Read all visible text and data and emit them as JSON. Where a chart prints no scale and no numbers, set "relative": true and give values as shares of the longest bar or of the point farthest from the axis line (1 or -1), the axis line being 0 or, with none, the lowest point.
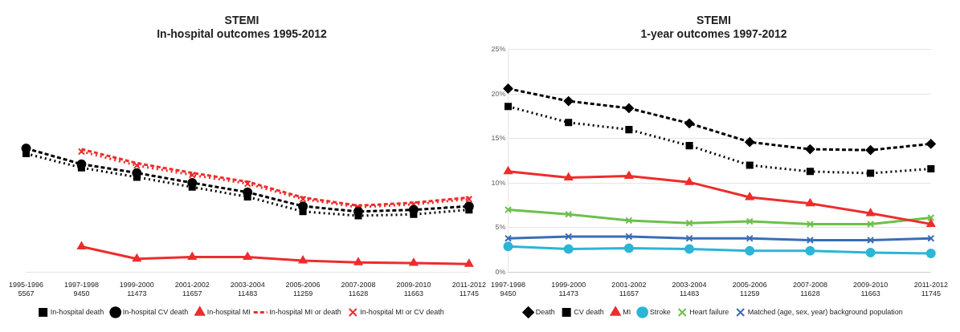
{
  "chart_data": [
    {
      "type": "line",
      "title": "STEMI\nIn-hospital outcomes 1995-2012",
      "relative": true,
      "categories": [
        "1995-1996\n5567",
        "1997-1998\n9450",
        "1999-2000\n11473",
        "2001-2002\n11657",
        "2003-2004\n11483",
        "2005-2006\n11259",
        "2007-2008\n11628",
        "2009-2010\n11663",
        "2011-2012\n11745"
      ],
      "series": [
        {
          "name": "In-hospital death",
          "color": "#000000",
          "marker": "square",
          "line_style": "dotted",
          "values": [
            0.958,
            0.844,
            0.768,
            0.688,
            0.609,
            0.49,
            0.456,
            0.467,
            0.504
          ]
        },
        {
          "name": "In-hospital CV death",
          "color": "#000000",
          "marker": "circle",
          "line_style": "dashed",
          "values": [
            1,
            0.873,
            0.802,
            0.722,
            0.646,
            0.533,
            0.49,
            0.504,
            0.533
          ]
        },
        {
          "name": "In-hospital MI",
          "color": "#ee2c2c",
          "marker": "triangle",
          "line_style": "solid",
          "values": [
            null,
            0.207,
            0.108,
            0.122,
            0.122,
            0.093,
            0.079,
            0.074,
            0.065
          ]
        },
        {
          "name": "In-hospital MI or death",
          "color": "#ee2c2c",
          "marker": "none",
          "line_style": "dashed",
          "values": [
            null,
            0.994,
            0.881,
            0.802,
            0.731,
            0.603,
            0.538,
            0.561,
            0.603
          ]
        },
        {
          "name": "In-hospital MI or CV death",
          "color": "#ee2c2c",
          "marker": "cross",
          "line_style": "dotted",
          "values": [
            null,
            0.975,
            0.862,
            0.785,
            0.715,
            0.59,
            0.525,
            0.548,
            0.59
          ]
        }
      ],
      "legend": "bottom"
    },
    {
      "type": "line",
      "title": "STEMI\n1-year outcomes 1997-2012",
      "categories": [
        "1997-1998\n9450",
        "1999-2000\n11473",
        "2001-2002\n11657",
        "2003-2004\n11483",
        "2005-2006\n11259",
        "2007-2008\n11628",
        "2009-2010\n11663",
        "2011-2012\n11745"
      ],
      "ylim": [
        0,
        25
      ],
      "yticks": [
        {
          "value": 0,
          "label": "0%"
        },
        {
          "value": 5,
          "label": "5%"
        },
        {
          "value": 10,
          "label": "10%"
        },
        {
          "value": 15,
          "label": "15%"
        },
        {
          "value": 20,
          "label": "20%"
        },
        {
          "value": 25,
          "label": "25%"
        }
      ],
      "series": [
        {
          "name": "Death",
          "color": "#000000",
          "marker": "diamond",
          "line_style": "dashed",
          "values": [
            20.6,
            19.2,
            18.4,
            16.7,
            14.6,
            13.8,
            13.7,
            14.4
          ]
        },
        {
          "name": "CV death",
          "color": "#000000",
          "marker": "square",
          "line_style": "dotted",
          "values": [
            18.6,
            16.8,
            16.0,
            14.2,
            12.0,
            11.3,
            11.1,
            11.6
          ]
        },
        {
          "name": "MI",
          "color": "#ee2c2c",
          "marker": "triangle",
          "line_style": "solid",
          "values": [
            11.3,
            10.6,
            10.8,
            10.1,
            8.4,
            7.7,
            6.6,
            5.4
          ]
        },
        {
          "name": "Stroke",
          "color": "#2bb5d6",
          "marker": "circle",
          "line_style": "solid",
          "values": [
            2.9,
            2.6,
            2.7,
            2.6,
            2.4,
            2.4,
            2.2,
            2.1
          ]
        },
        {
          "name": "Heart failure",
          "color": "#6cc04a",
          "marker": "cross",
          "line_style": "solid",
          "values": [
            7.0,
            6.5,
            5.8,
            5.5,
            5.7,
            5.4,
            5.4,
            6.1
          ]
        },
        {
          "name": "Matched (age, sex, year) background population",
          "color": "#3a6db5",
          "marker": "cross",
          "line_style": "solid",
          "values": [
            3.8,
            4.0,
            4.0,
            3.8,
            3.8,
            3.6,
            3.6,
            3.8
          ]
        }
      ],
      "grid": "y",
      "legend": "bottom"
    }
  ]
}
